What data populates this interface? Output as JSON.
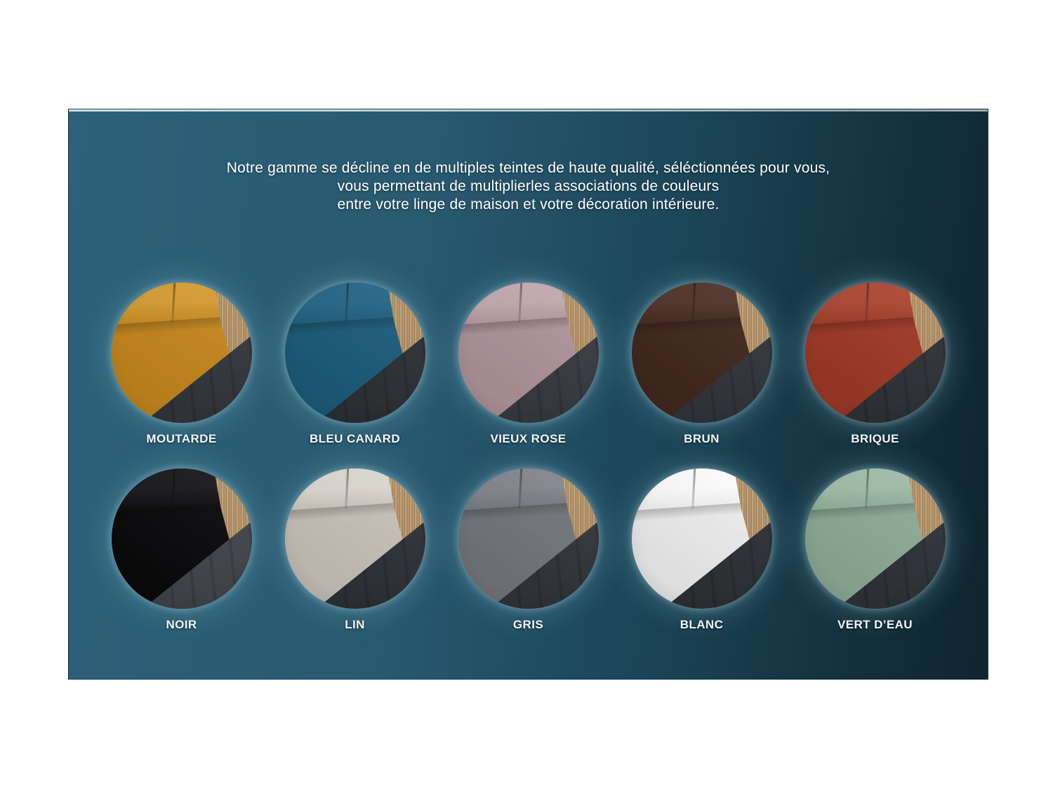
{
  "intro": {
    "line1": "Notre gamme se décline en de multiples teintes de haute qualité, séléctionnées pour vous,",
    "line2": "vous permettant de multiplierles associations de couleurs",
    "line3": "entre votre linge de maison et votre décoration intérieure."
  },
  "palette": {
    "panel_gradient_left": "#2d6179",
    "panel_gradient_right": "#0f2530",
    "circle_glow": "#9cc8dc",
    "wood": "#b6956c",
    "text_color": "#ffffff",
    "label_color": "#f5f9fb"
  },
  "swatches": [
    {
      "label": "MOUTARDE",
      "sheet": "#c8891e",
      "pillow": "#d89e35",
      "base": "#34383d"
    },
    {
      "label": "BLEU CANARD",
      "sheet": "#1d5e7c",
      "pillow": "#27688a",
      "base": "#2e3236"
    },
    {
      "label": "VIEUX ROSE",
      "sheet": "#b2969d",
      "pillow": "#c4acb2",
      "base": "#393d42"
    },
    {
      "label": "BRUN",
      "sheet": "#43291f",
      "pillow": "#52362c",
      "base": "#33373c"
    },
    {
      "label": "BRIQUE",
      "sheet": "#a13a28",
      "pillow": "#b04a35",
      "base": "#303439"
    },
    {
      "label": "NOIR",
      "sheet": "#0b0b0d",
      "pillow": "#1a1a1e",
      "base": "#43474c"
    },
    {
      "label": "LIN",
      "sheet": "#c9c4bb",
      "pillow": "#dedad2",
      "base": "#2f3338"
    },
    {
      "label": "GRIS",
      "sheet": "#75787d",
      "pillow": "#85888e",
      "base": "#33363b"
    },
    {
      "label": "BLANC",
      "sheet": "#f1f1f1",
      "pillow": "#ffffff",
      "base": "#2e3236"
    },
    {
      "label": "VERT D’EAU",
      "sheet": "#8fae99",
      "pillow": "#a2bfab",
      "base": "#303439"
    }
  ]
}
